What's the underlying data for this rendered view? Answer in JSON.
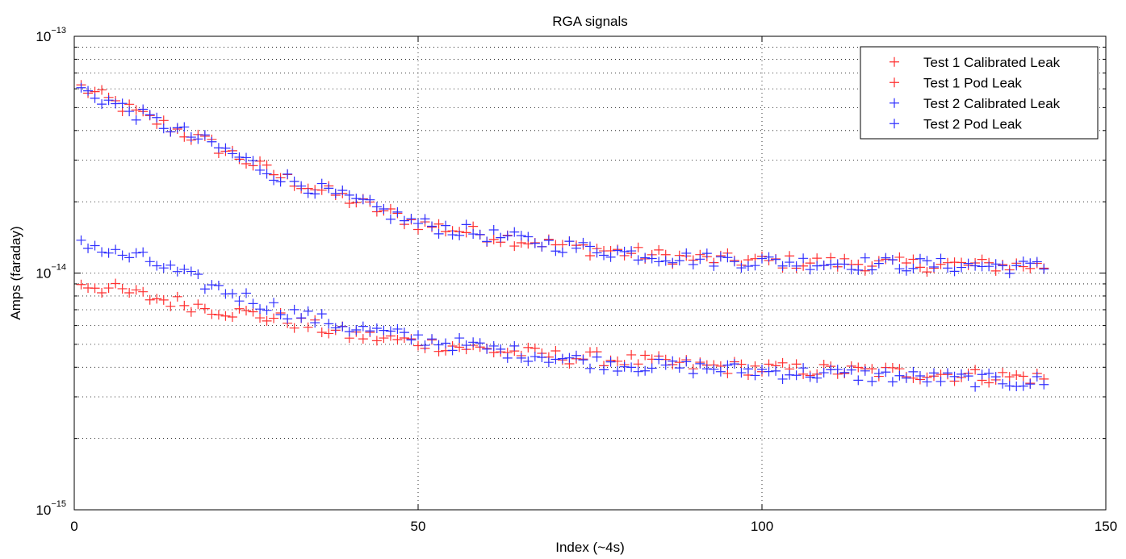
{
  "chart_data": {
    "type": "scatter",
    "title": "RGA signals",
    "xlabel": "Index (~4s)",
    "ylabel": "Amps (faraday)",
    "xlim": [
      0,
      150
    ],
    "ylim": [
      1e-15,
      1e-13
    ],
    "yscale": "log",
    "grid": true,
    "legend_placement": "top-right",
    "x_ticks": [
      {
        "value": 0,
        "label": "0"
      },
      {
        "value": 50,
        "label": "50"
      },
      {
        "value": 100,
        "label": "100"
      },
      {
        "value": 150,
        "label": "150"
      }
    ],
    "y_ticks": [
      {
        "value": 1e-15,
        "base": "10",
        "exp": "−15"
      },
      {
        "value": 1e-14,
        "base": "10",
        "exp": "−14"
      },
      {
        "value": 1e-13,
        "base": "10",
        "exp": "−13"
      }
    ],
    "x_start": 1,
    "x_end": 141,
    "series": [
      {
        "name": "Test 1 Calibrated Leak",
        "color": "#ff3030",
        "marker": "plus",
        "anchors": [
          [
            1,
            6.1e-14
          ],
          [
            10,
            4.6e-14
          ],
          [
            20,
            3.5e-14
          ],
          [
            30,
            2.55e-14
          ],
          [
            40,
            2.05e-14
          ],
          [
            50,
            1.62e-14
          ],
          [
            60,
            1.45e-14
          ],
          [
            70,
            1.32e-14
          ],
          [
            80,
            1.22e-14
          ],
          [
            90,
            1.15e-14
          ],
          [
            100,
            1.12e-14
          ],
          [
            120,
            1.09e-14
          ],
          [
            141,
            1.07e-14
          ]
        ]
      },
      {
        "name": "Test 1 Pod Leak",
        "color": "#ff3030",
        "marker": "plus",
        "anchors": [
          [
            1,
            9.1e-15
          ],
          [
            10,
            8e-15
          ],
          [
            20,
            7.1e-15
          ],
          [
            30,
            6.4e-15
          ],
          [
            40,
            5.5e-15
          ],
          [
            50,
            5.1e-15
          ],
          [
            60,
            4.75e-15
          ],
          [
            70,
            4.45e-15
          ],
          [
            80,
            4.3e-15
          ],
          [
            90,
            4.05e-15
          ],
          [
            100,
            3.95e-15
          ],
          [
            120,
            3.8e-15
          ],
          [
            141,
            3.6e-15
          ]
        ]
      },
      {
        "name": "Test 2 Calibrated Leak",
        "color": "#3030ff",
        "marker": "plus",
        "anchors": [
          [
            1,
            5.95e-14
          ],
          [
            10,
            4.6e-14
          ],
          [
            20,
            3.5e-14
          ],
          [
            30,
            2.55e-14
          ],
          [
            40,
            2.05e-14
          ],
          [
            50,
            1.62e-14
          ],
          [
            60,
            1.45e-14
          ],
          [
            70,
            1.32e-14
          ],
          [
            80,
            1.22e-14
          ],
          [
            90,
            1.15e-14
          ],
          [
            100,
            1.12e-14
          ],
          [
            120,
            1.09e-14
          ],
          [
            141,
            1.06e-14
          ]
        ]
      },
      {
        "name": "Test 2 Pod Leak",
        "color": "#3030ff",
        "marker": "plus",
        "anchors": [
          [
            1,
            1.38e-14
          ],
          [
            5,
            1.22e-14
          ],
          [
            10,
            1.15e-14
          ],
          [
            20,
            8.8e-15
          ],
          [
            30,
            7e-15
          ],
          [
            40,
            5.9e-15
          ],
          [
            50,
            5.3e-15
          ],
          [
            60,
            4.8e-15
          ],
          [
            70,
            4.4e-15
          ],
          [
            80,
            4.1e-15
          ],
          [
            90,
            4e-15
          ],
          [
            100,
            3.85e-15
          ],
          [
            120,
            3.65e-15
          ],
          [
            141,
            3.45e-15
          ]
        ]
      }
    ]
  }
}
